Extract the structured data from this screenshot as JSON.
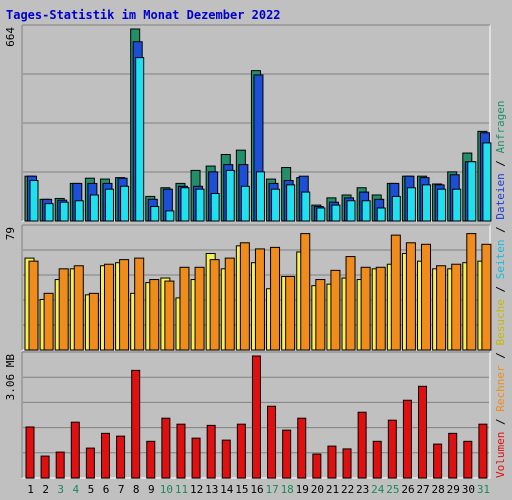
{
  "title": "Tages-Statistik im Monat Dezember 2022",
  "colors": {
    "anfragen": "#238f6a",
    "dateien": "#1c4fd6",
    "seiten": "#20e0f0",
    "besuche": "#f8f050",
    "rechner": "#f08c1c",
    "volumen": "#e01010",
    "weekend": "#1a8a5a",
    "weekday": "#000000",
    "right_slash": "#000000"
  },
  "right_legend": [
    {
      "text": "Volumen",
      "color": "#e01010"
    },
    {
      "text": "Rechner",
      "color": "#f08c1c"
    },
    {
      "text": "Besuche",
      "color": "#c8b800"
    },
    {
      "text": "Seiten",
      "color": "#1ab8d8"
    },
    {
      "text": "Dateien",
      "color": "#1c3cd6"
    },
    {
      "text": "Anfragen",
      "color": "#238f6a"
    }
  ],
  "chart_data": [
    {
      "type": "bar",
      "panel": "hits",
      "ymax_label": "664",
      "ylim": [
        0,
        664
      ],
      "categories": [
        "1",
        "2",
        "3",
        "4",
        "5",
        "6",
        "7",
        "8",
        "9",
        "10",
        "11",
        "12",
        "13",
        "14",
        "15",
        "16",
        "17",
        "18",
        "19",
        "20",
        "21",
        "22",
        "23",
        "24",
        "25",
        "26",
        "27",
        "28",
        "29",
        "30",
        "31"
      ],
      "series": [
        {
          "name": "Anfragen",
          "values": [
            155,
            75,
            78,
            130,
            148,
            145,
            150,
            664,
            85,
            115,
            130,
            175,
            190,
            230,
            245,
            520,
            145,
            185,
            150,
            55,
            80,
            90,
            115,
            90,
            130,
            155,
            155,
            128,
            170,
            235,
            310
          ]
        },
        {
          "name": "Dateien",
          "values": [
            155,
            75,
            72,
            130,
            130,
            130,
            148,
            620,
            75,
            110,
            120,
            120,
            170,
            195,
            195,
            505,
            130,
            140,
            155,
            50,
            65,
            80,
            100,
            75,
            130,
            155,
            150,
            125,
            160,
            205,
            305
          ]
        },
        {
          "name": "Seiten",
          "values": [
            140,
            60,
            65,
            70,
            90,
            110,
            120,
            565,
            50,
            35,
            115,
            110,
            95,
            175,
            120,
            170,
            110,
            125,
            100,
            45,
            55,
            70,
            70,
            45,
            85,
            115,
            125,
            110,
            110,
            205,
            270
          ]
        }
      ]
    },
    {
      "type": "bar",
      "panel": "visits",
      "ymax_label": "79",
      "ylim": [
        0,
        79
      ],
      "categories": [
        "1",
        "2",
        "3",
        "4",
        "5",
        "6",
        "7",
        "8",
        "9",
        "10",
        "11",
        "12",
        "13",
        "14",
        "15",
        "16",
        "17",
        "18",
        "19",
        "20",
        "21",
        "22",
        "23",
        "24",
        "25",
        "26",
        "27",
        "28",
        "29",
        "30",
        "31"
      ],
      "series": [
        {
          "name": "Besuche",
          "values": [
            60,
            33,
            46,
            53,
            36,
            55,
            57,
            37,
            44,
            47,
            34,
            46,
            63,
            53,
            68,
            57,
            40,
            48,
            64,
            42,
            43,
            47,
            46,
            53,
            56,
            63,
            58,
            53,
            53,
            57,
            58
          ]
        },
        {
          "name": "Rechner",
          "values": [
            58,
            37,
            53,
            55,
            37,
            56,
            59,
            60,
            46,
            45,
            54,
            54,
            59,
            60,
            70,
            66,
            67,
            48,
            76,
            46,
            52,
            61,
            54,
            54,
            75,
            70,
            69,
            55,
            56,
            76,
            69
          ]
        }
      ]
    },
    {
      "type": "bar",
      "panel": "volume",
      "ymax_label": "3.06 MB",
      "ylim": [
        0,
        3.06
      ],
      "categories": [
        "1",
        "2",
        "3",
        "4",
        "5",
        "6",
        "7",
        "8",
        "9",
        "10",
        "11",
        "12",
        "13",
        "14",
        "15",
        "16",
        "17",
        "18",
        "19",
        "20",
        "21",
        "22",
        "23",
        "24",
        "25",
        "26",
        "27",
        "28",
        "29",
        "30",
        "31"
      ],
      "series": [
        {
          "name": "Volumen",
          "values": [
            1.28,
            0.55,
            0.65,
            1.4,
            0.75,
            1.12,
            1.05,
            2.7,
            0.92,
            1.5,
            1.35,
            1.0,
            1.32,
            0.95,
            1.35,
            3.06,
            1.8,
            1.2,
            1.5,
            0.6,
            0.8,
            0.73,
            1.65,
            0.92,
            1.45,
            1.95,
            2.3,
            0.85,
            1.12,
            0.92,
            1.35
          ]
        }
      ]
    }
  ]
}
